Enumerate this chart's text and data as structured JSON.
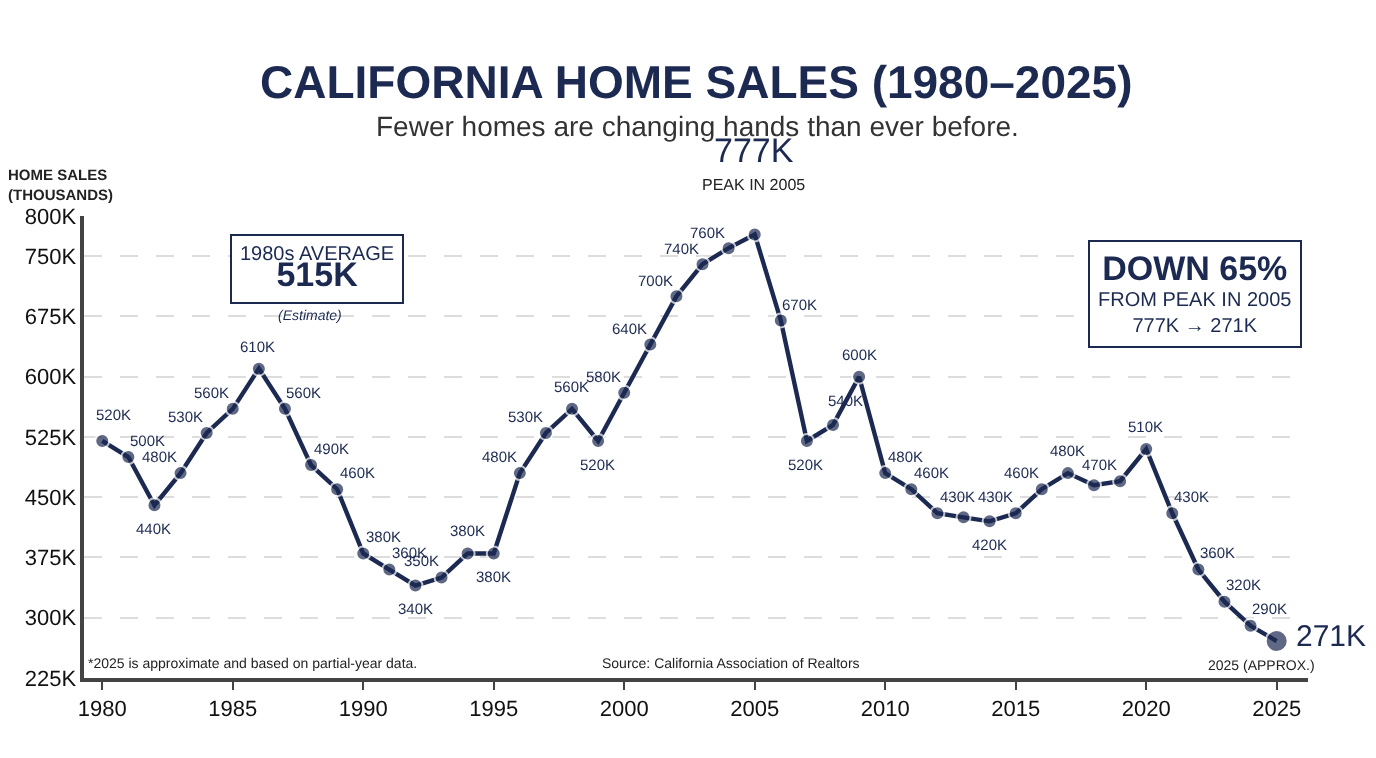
{
  "chart_data": {
    "type": "line",
    "title": "CALIFORNIA HOME SALES (1980–2025)",
    "subtitle": "Fewer homes are changing hands than ever before.",
    "ylabel": "HOME SALES\n(THOUSANDS)",
    "x": [
      1980,
      1981,
      1982,
      1983,
      1984,
      1985,
      1986,
      1987,
      1988,
      1989,
      1990,
      1991,
      1992,
      1993,
      1994,
      1995,
      1996,
      1997,
      1998,
      1999,
      2000,
      2001,
      2002,
      2003,
      2004,
      2005,
      2006,
      2007,
      2008,
      2009,
      2010,
      2011,
      2012,
      2013,
      2014,
      2015,
      2016,
      2017,
      2018,
      2019,
      2020,
      2021,
      2022,
      2023,
      2024,
      2025
    ],
    "series": [
      {
        "color": "#1c2a52",
        "values": [
          520,
          500,
          440,
          480,
          530,
          560,
          610,
          560,
          490,
          460,
          380,
          360,
          340,
          350,
          380,
          380,
          480,
          530,
          560,
          520,
          580,
          640,
          700,
          740,
          760,
          777,
          670,
          520,
          540,
          600,
          480,
          460,
          430,
          425,
          420,
          430,
          460,
          480,
          465,
          470,
          510,
          430,
          360,
          320,
          290,
          271
        ],
        "value_labels": [
          "520K",
          "500K",
          "440K",
          "480K",
          "530K",
          "560K",
          "610K",
          "560K",
          "490K",
          "460K",
          "380K",
          "360K",
          "340K",
          "350K",
          "380K",
          "380K",
          "480K",
          "530K",
          "560K",
          "520K",
          "580K",
          "640K",
          "700K",
          "740K",
          "760K",
          "777K",
          "670K",
          "520K",
          "540K",
          "600K",
          "480K",
          "460K",
          "430K",
          null,
          "420K",
          "430K",
          "460K",
          "480K",
          null,
          "470K",
          "510K",
          "430K",
          "360K",
          "320K",
          "290K",
          "271K"
        ]
      }
    ],
    "xlim": [
      1979.3,
      2026.2
    ],
    "xticks": [
      1980,
      1985,
      1990,
      1995,
      2000,
      2005,
      2010,
      2015,
      2020,
      2025
    ],
    "ylim": [
      225,
      800
    ],
    "yticks": [
      {
        "value": 225,
        "label": "225K"
      },
      {
        "value": 300,
        "label": "300K"
      },
      {
        "value": 375,
        "label": "375K"
      },
      {
        "value": 450,
        "label": "450K"
      },
      {
        "value": 525,
        "label": "525K"
      },
      {
        "value": 600,
        "label": "600K"
      },
      {
        "value": 675,
        "label": "675K"
      },
      {
        "value": 750,
        "label": "750K"
      },
      {
        "value": 800,
        "label": "800K"
      }
    ],
    "grid": "y",
    "marker": "circle",
    "line_style": "solid",
    "annotations": [
      {
        "text": "PEAK IN 2005",
        "x": 2005,
        "y": 777
      },
      {
        "text": "2025 (APPROX.)",
        "x": 2025,
        "y": 271
      },
      "1980s AVERAGE\n515K",
      "(Estimate)",
      "DOWN 65%\nFROM PEAK IN 2005\n777K → 271K",
      "*2025 is approximate and based on partial-year data.",
      "Source: California Association of Realtors"
    ]
  }
}
